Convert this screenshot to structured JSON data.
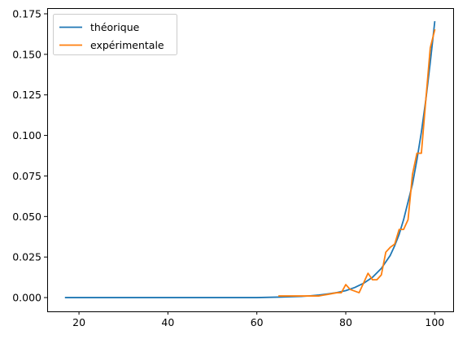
{
  "chart_data": {
    "type": "line",
    "title": "",
    "xlabel": "",
    "ylabel": "",
    "xlim": [
      12.85,
      104.15
    ],
    "ylim": [
      -0.0085,
      0.1785
    ],
    "xticks": [
      20,
      40,
      60,
      80,
      100
    ],
    "yticks": [
      0.0,
      0.025,
      0.05,
      0.075,
      0.1,
      0.125,
      0.15,
      0.175
    ],
    "xtick_labels": [
      "20",
      "40",
      "60",
      "80",
      "100"
    ],
    "ytick_labels": [
      "0.000",
      "0.025",
      "0.050",
      "0.075",
      "0.100",
      "0.125",
      "0.150",
      "0.175"
    ],
    "grid": false,
    "legend_position": "upper-left",
    "series": [
      {
        "name": "théorique",
        "color": "#1f77b4",
        "x": [
          17,
          60,
          65,
          70,
          72,
          74,
          76,
          78,
          80,
          82,
          84,
          86,
          88,
          90,
          91,
          92,
          93,
          94,
          95,
          96,
          97,
          98,
          99,
          100
        ],
        "y": [
          0.0,
          0.0,
          0.0003,
          0.0007,
          0.0011,
          0.0016,
          0.0023,
          0.0031,
          0.0043,
          0.0062,
          0.0088,
          0.0125,
          0.018,
          0.026,
          0.032,
          0.039,
          0.048,
          0.059,
          0.07,
          0.085,
          0.102,
          0.122,
          0.145,
          0.17
        ]
      },
      {
        "name": "expérimentale",
        "color": "#ff7f0e",
        "x": [
          65,
          66,
          67,
          68,
          69,
          70,
          71,
          72,
          73,
          74,
          75,
          76,
          77,
          78,
          79,
          80,
          81,
          82,
          83,
          84,
          85,
          86,
          87,
          88,
          89,
          90,
          91,
          92,
          93,
          94,
          95,
          96,
          97,
          98,
          99,
          100
        ],
        "y": [
          0.001,
          0.001,
          0.001,
          0.001,
          0.001,
          0.001,
          0.001,
          0.001,
          0.001,
          0.001,
          0.0015,
          0.002,
          0.0025,
          0.003,
          0.003,
          0.008,
          0.005,
          0.004,
          0.003,
          0.009,
          0.015,
          0.011,
          0.011,
          0.014,
          0.028,
          0.031,
          0.033,
          0.042,
          0.042,
          0.048,
          0.076,
          0.089,
          0.089,
          0.122,
          0.154,
          0.165
        ]
      }
    ]
  }
}
